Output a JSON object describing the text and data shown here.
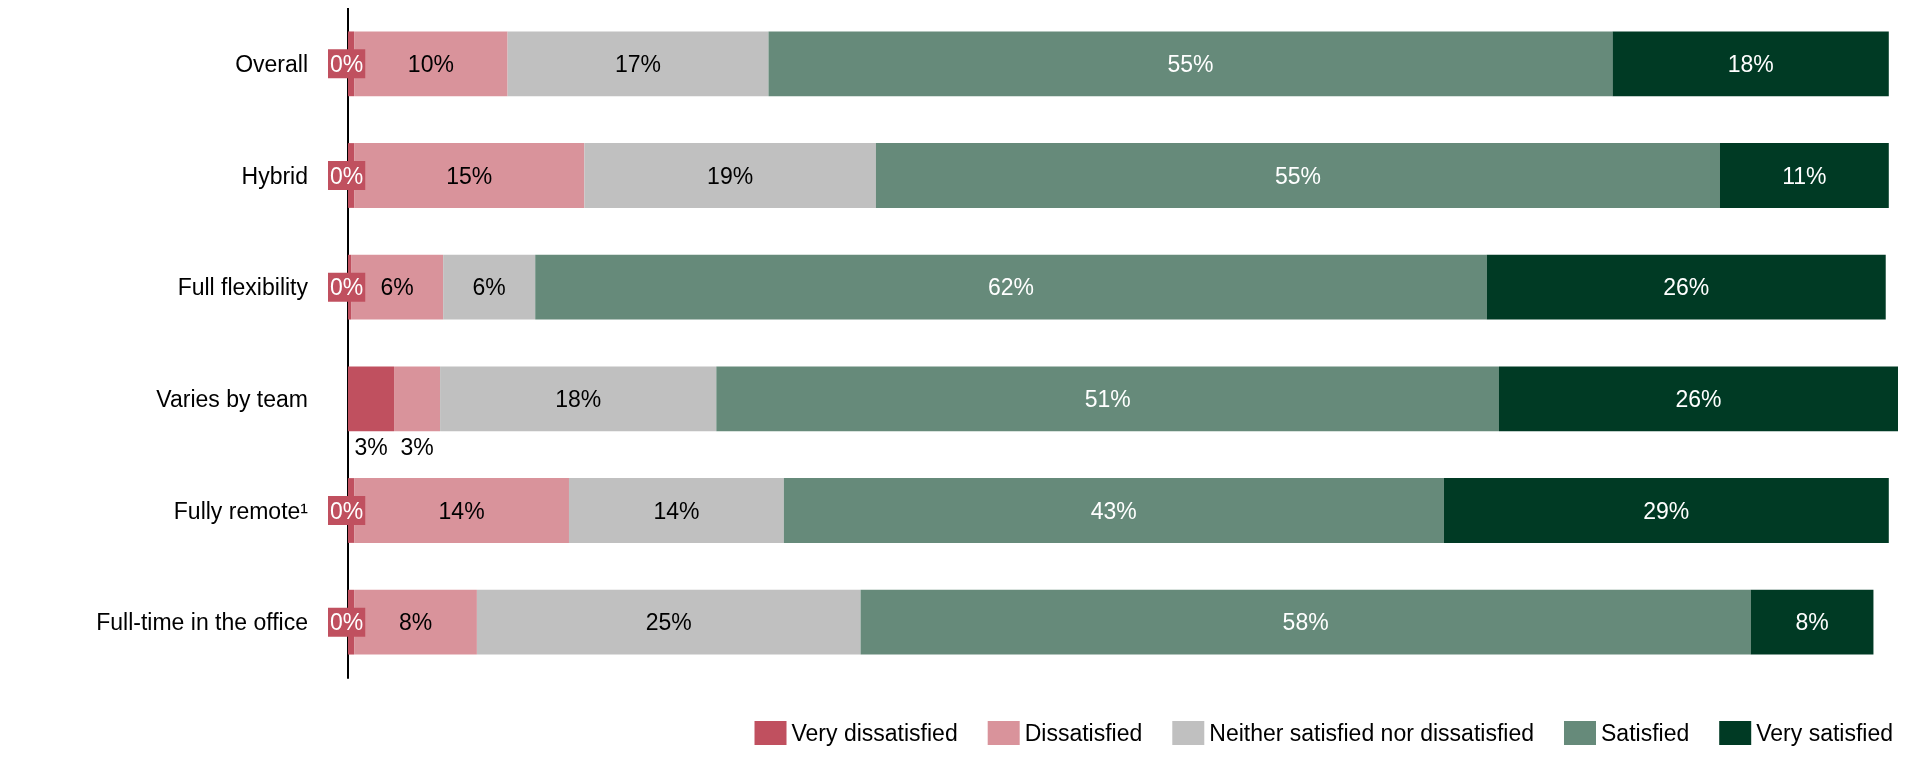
{
  "chart_data": {
    "type": "bar",
    "orientation": "horizontal",
    "stacked": true,
    "legend": "bottom",
    "categories": [
      "Overall",
      "Hybrid",
      "Full flexibility",
      "Varies by team",
      "Fully remote¹",
      "Full-time in the office"
    ],
    "series": [
      {
        "name": "Very dissatisfied",
        "color": "#c0505f",
        "values": [
          0.4,
          0.4,
          0.2,
          3,
          0.4,
          0.4
        ],
        "value_labels": [
          "0%",
          "0%",
          "0%",
          "3%",
          "0%",
          "0%"
        ]
      },
      {
        "name": "Dissatisfied",
        "color": "#d9939b",
        "values": [
          10,
          15,
          6,
          3,
          14,
          8
        ],
        "value_labels": [
          "10%",
          "15%",
          "6%",
          "3%",
          "14%",
          "8%"
        ]
      },
      {
        "name": "Neither satisfied nor dissatisfied",
        "color": "#c0c0c0",
        "values": [
          17,
          19,
          6,
          18,
          14,
          25
        ],
        "value_labels": [
          "17%",
          "19%",
          "6%",
          "18%",
          "14%",
          "25%"
        ]
      },
      {
        "name": "Satisfied",
        "color": "#668a7a",
        "values": [
          55,
          55,
          62,
          51,
          43,
          58
        ],
        "value_labels": [
          "55%",
          "55%",
          "62%",
          "51%",
          "43%",
          "58%"
        ]
      },
      {
        "name": "Very satisfied",
        "color": "#003a24",
        "values": [
          18,
          11,
          26,
          26,
          29,
          8
        ],
        "value_labels": [
          "18%",
          "11%",
          "26%",
          "26%",
          "29%",
          "8%"
        ]
      }
    ]
  }
}
